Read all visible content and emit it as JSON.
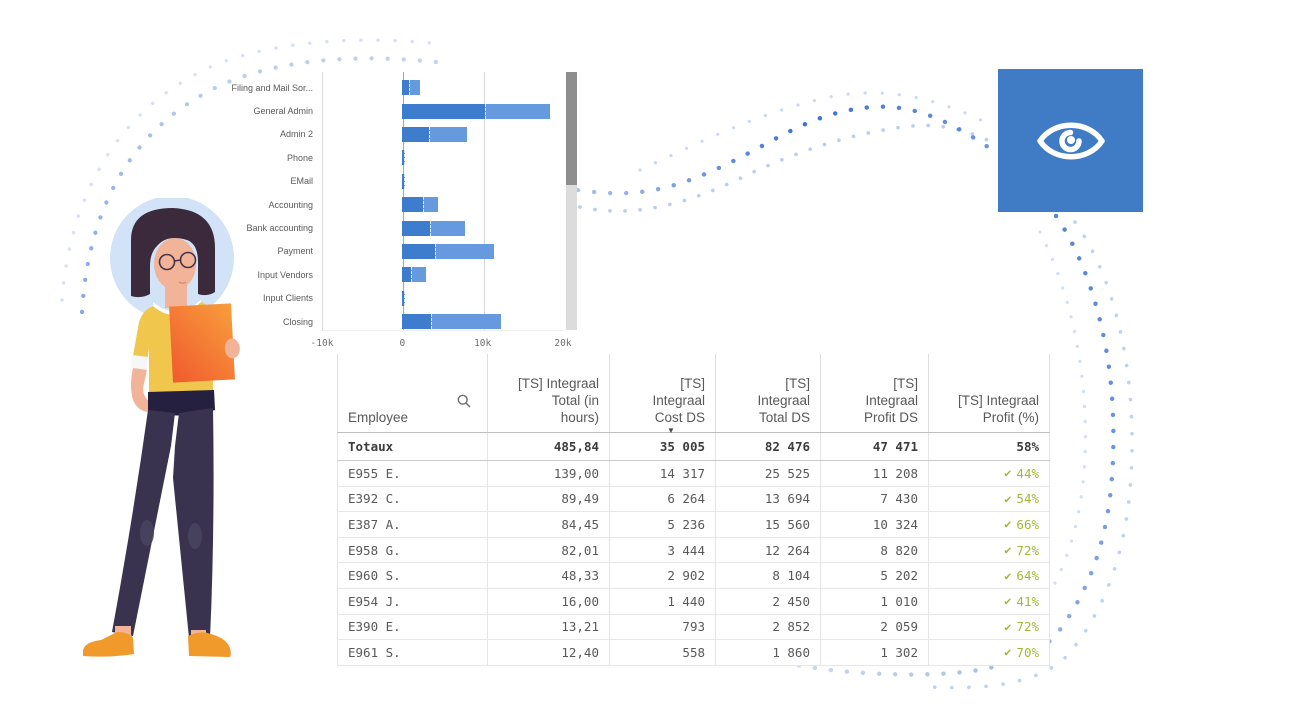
{
  "page": {
    "background": "#ffffff"
  },
  "colors": {
    "bar_dark": "#3e7cce",
    "bar_light": "#659ade",
    "dot_blue": "#2f6bd0",
    "tile_blue": "#3f7cc5",
    "check_green": "#a2b738",
    "scrollbar_thumb": "#8e8e8e",
    "scrollbar_track": "#dcdcdc"
  },
  "illustration": {
    "name": "woman holding orange folder",
    "halo": "#d2e3f7",
    "hair": "#3a2a3b",
    "skin": "#f2b498",
    "shirt": "#f1c64d",
    "pants": "#39334f",
    "shoes": "#f09a2b",
    "folder_from": "#f05a2e",
    "folder_to": "#f89e3c"
  },
  "eye_tile": {
    "icon": "eye"
  },
  "chart_data": [
    {
      "type": "bar",
      "orientation": "horizontal",
      "stacked": true,
      "title": "",
      "xlabel": "",
      "ylabel": "",
      "xlim": [
        -10000,
        20000
      ],
      "x_ticks": [
        "-10k",
        "0",
        "10k",
        "20k"
      ],
      "x_tick_values": [
        -10000,
        0,
        10000,
        20000
      ],
      "grid": "vertical",
      "legend": "none",
      "categories": [
        "Filing and Mail Sor...",
        "General Admin",
        "Admin 2",
        "Phone",
        "EMail",
        "Accounting",
        "Bank accounting",
        "Payment",
        "Input Vendors",
        "Input Clients",
        "Closing"
      ],
      "series": [
        {
          "name": "segment-dark",
          "color": "#3e7cce",
          "values": [
            800,
            10300,
            3300,
            150,
            200,
            2600,
            3500,
            4100,
            1100,
            150,
            3600
          ]
        },
        {
          "name": "segment-light",
          "color": "#659ade",
          "values": [
            1400,
            8100,
            4700,
            70,
            150,
            1900,
            4300,
            7300,
            1800,
            70,
            8700
          ]
        }
      ]
    },
    {
      "type": "table",
      "search_icon": "magnifier",
      "sort_indicator_column": 2,
      "sort_indicator_glyph": "▼",
      "check_glyph": "✔",
      "columns": [
        "Employee",
        "[TS] Integraal\nTotal (in\nhours)",
        "[TS]\nIntegraal\nCost DS",
        "[TS]\nIntegraal\nTotal DS",
        "[TS]\nIntegraal\nProfit DS",
        "[TS] Integraal\nProfit (%)"
      ],
      "totals": [
        "Totaux",
        "485,84",
        "35 005",
        "82 476",
        "47 471",
        "58%"
      ],
      "rows": [
        [
          "E955 E.",
          "139,00",
          "14 317",
          "25 525",
          "11 208",
          "44%"
        ],
        [
          "E392 C.",
          "89,49",
          "6 264",
          "13 694",
          "7 430",
          "54%"
        ],
        [
          "E387 A.",
          "84,45",
          "5 236",
          "15 560",
          "10 324",
          "66%"
        ],
        [
          "E958 G.",
          "82,01",
          "3 444",
          "12 264",
          "8 820",
          "72%"
        ],
        [
          "E960 S.",
          "48,33",
          "2 902",
          "8 104",
          "5 202",
          "64%"
        ],
        [
          "E954 J.",
          "16,00",
          "1 440",
          "2 450",
          "1 010",
          "41%"
        ],
        [
          "E390 E.",
          "13,21",
          "793",
          "2 852",
          "2 059",
          "72%"
        ],
        [
          "E961 S.",
          "12,40",
          "558",
          "1 860",
          "1 302",
          "70%"
        ]
      ]
    }
  ]
}
